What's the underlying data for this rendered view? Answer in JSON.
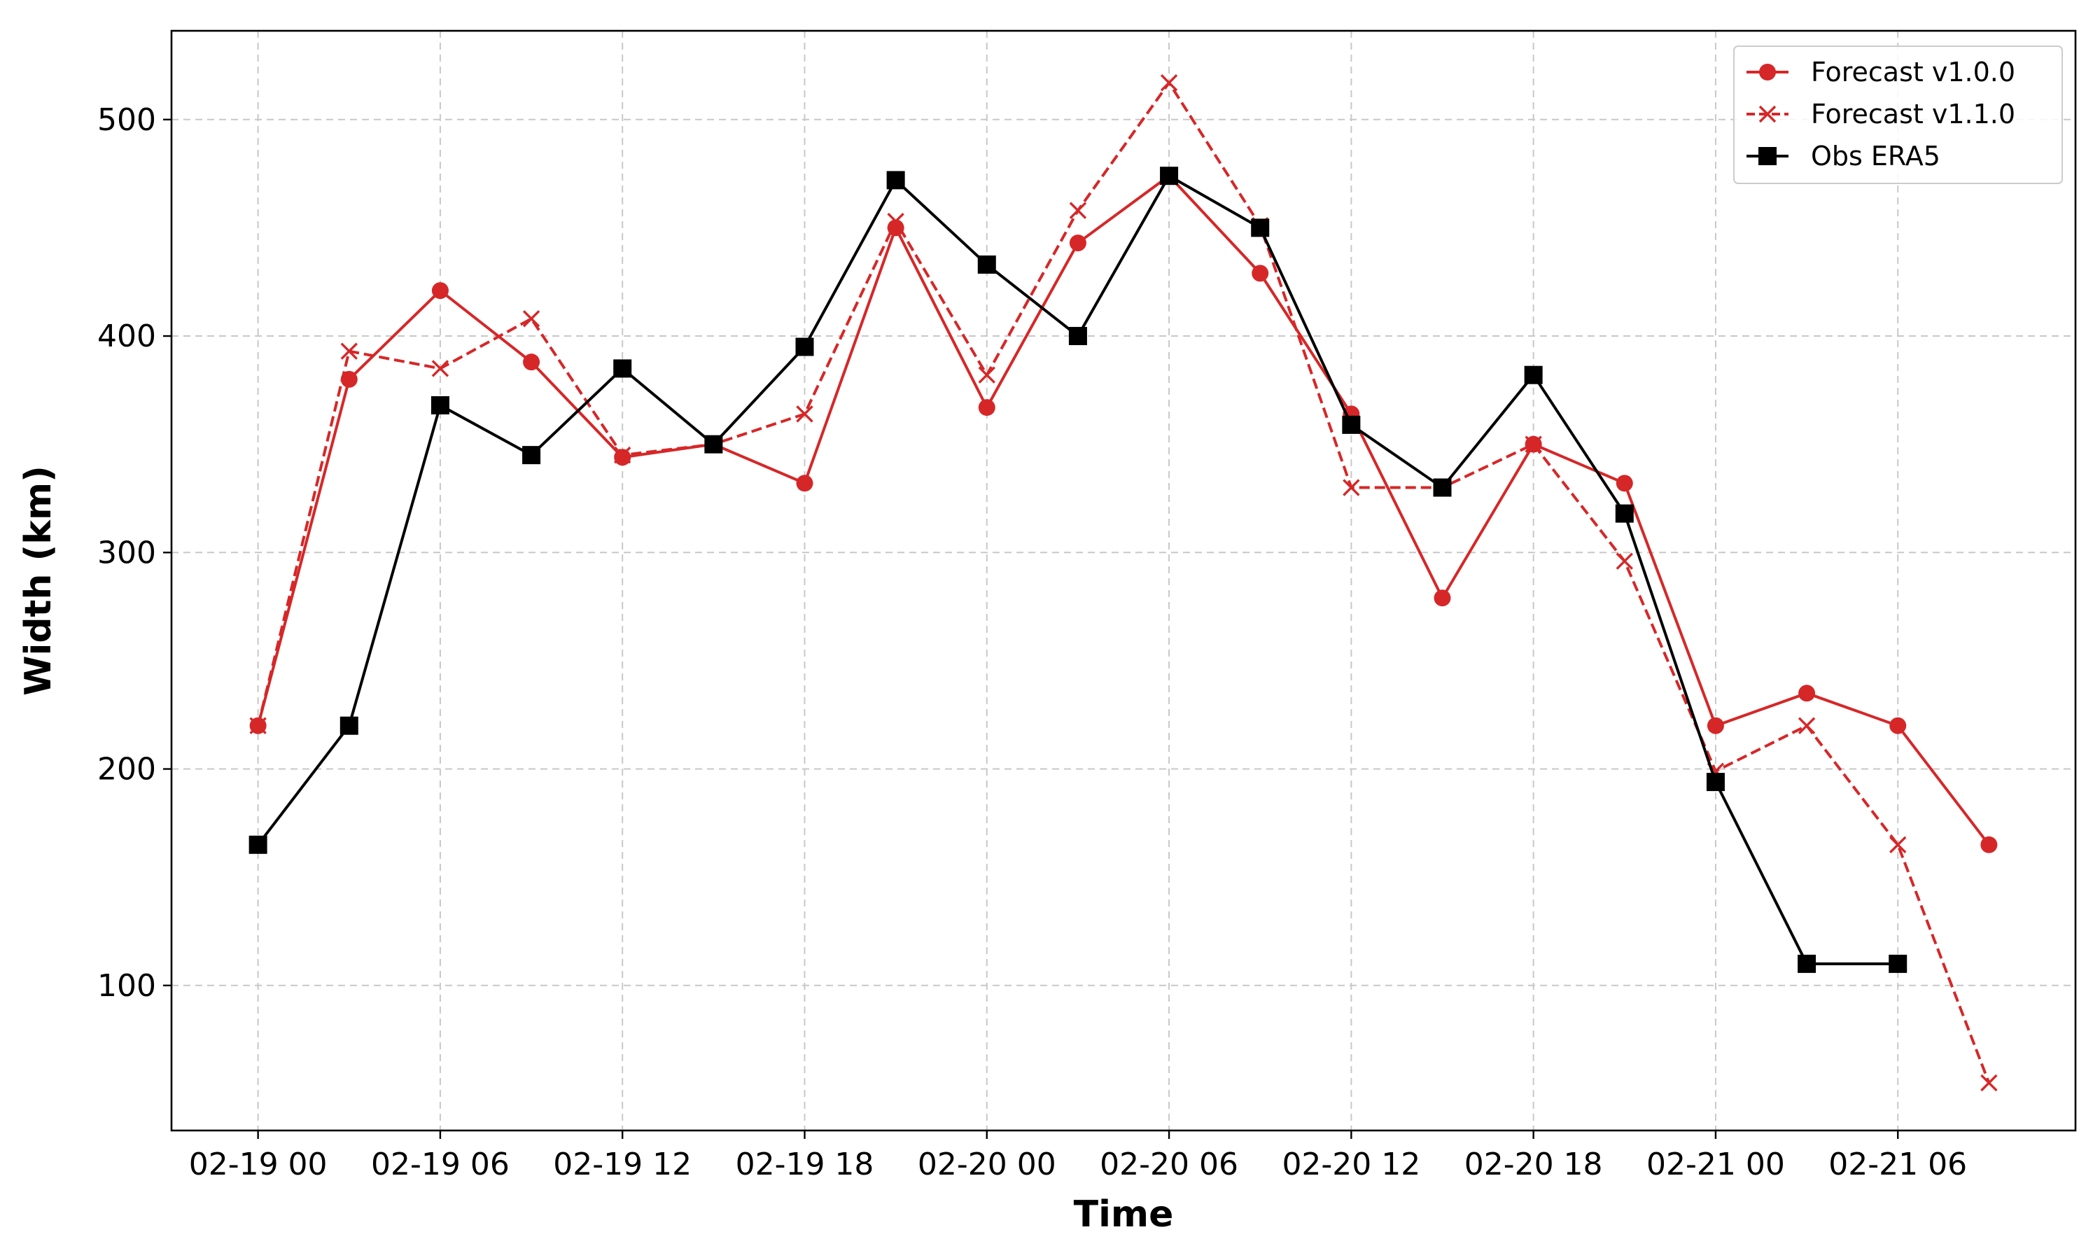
{
  "chart_data": {
    "type": "line",
    "title": "",
    "xlabel": "Time",
    "ylabel": "Width (km)",
    "x": [
      "02-19 00",
      "02-19 03",
      "02-19 06",
      "02-19 09",
      "02-19 12",
      "02-19 15",
      "02-19 18",
      "02-19 21",
      "02-20 00",
      "02-20 03",
      "02-20 06",
      "02-20 09",
      "02-20 12",
      "02-20 15",
      "02-20 18",
      "02-20 21",
      "02-21 00",
      "02-21 03",
      "02-21 06",
      "02-21 09"
    ],
    "x_ticks": [
      "02-19 00",
      "02-19 06",
      "02-19 12",
      "02-19 18",
      "02-20 00",
      "02-20 06",
      "02-20 12",
      "02-20 18",
      "02-21 00",
      "02-21 06"
    ],
    "y_ticks": [
      100,
      200,
      300,
      400,
      500
    ],
    "ylim": [
      33,
      541
    ],
    "grid": true,
    "legend_position": "top-right",
    "series": [
      {
        "name": "Forecast v1.0.0",
        "color": "#d62728",
        "linestyle": "solid",
        "marker": "circle",
        "values": [
          220,
          380,
          421,
          388,
          344,
          350,
          332,
          450,
          367,
          443,
          474,
          429,
          364,
          279,
          350,
          332,
          220,
          235,
          220,
          165
        ]
      },
      {
        "name": "Forecast v1.1.0",
        "color": "#d62728",
        "linestyle": "dashed",
        "marker": "x",
        "values": [
          220,
          393,
          385,
          408,
          345,
          350,
          364,
          453,
          382,
          458,
          517,
          451,
          330,
          330,
          350,
          296,
          199,
          220,
          165,
          55
        ]
      },
      {
        "name": "Obs ERA5",
        "color": "#000000",
        "linestyle": "solid",
        "marker": "square",
        "values": [
          165,
          220,
          368,
          345,
          385,
          350,
          395,
          472,
          433,
          400,
          474,
          450,
          359,
          330,
          382,
          318,
          194,
          110,
          110,
          null
        ]
      }
    ]
  }
}
